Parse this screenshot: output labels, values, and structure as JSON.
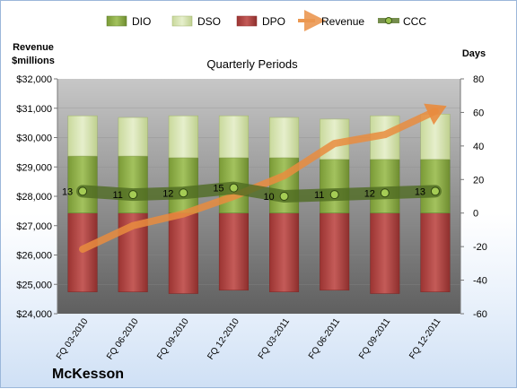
{
  "chart_data": {
    "type": "bar",
    "title": "Quarterly Periods",
    "company": "McKesson",
    "left_axis_label": [
      "Revenue",
      "$millions"
    ],
    "right_axis_label": "Days",
    "categories": [
      "FQ 03-2010",
      "FQ 06-2010",
      "FQ 09-2010",
      "FQ 12-2010",
      "FQ 03-2011",
      "FQ 06-2011",
      "FQ 09-2011",
      "FQ 12-2011"
    ],
    "left_axis": {
      "min": 24000,
      "max": 32000,
      "step": 1000,
      "tick_labels": [
        "$24,000",
        "$25,000",
        "$26,000",
        "$27,000",
        "$28,000",
        "$29,000",
        "$30,000",
        "$31,000",
        "$32,000"
      ]
    },
    "right_axis": {
      "min": -60,
      "max": 80,
      "step": 20,
      "tick_labels": [
        "-60",
        "-40",
        "-20",
        "0",
        "20",
        "40",
        "60",
        "80"
      ]
    },
    "series": [
      {
        "name": "DIO",
        "axis": "days",
        "color": "#92b34e",
        "values": [
          34,
          34,
          33,
          33,
          33,
          32,
          32,
          32
        ]
      },
      {
        "name": "DSO",
        "axis": "days",
        "color": "#d6e4b2",
        "values": [
          24,
          23,
          25,
          25,
          24,
          24,
          26,
          27
        ]
      },
      {
        "name": "DPO",
        "axis": "days",
        "color": "#b94a48",
        "values": [
          -47,
          -47,
          -48,
          -46,
          -47,
          -46,
          -48,
          -47
        ]
      },
      {
        "name": "Revenue",
        "axis": "revenue",
        "color": "#e98c3e",
        "values": [
          26200,
          27000,
          27400,
          28000,
          28700,
          29800,
          30100,
          30900
        ]
      },
      {
        "name": "CCC",
        "axis": "days",
        "color": "#5d7a2e",
        "values": [
          13,
          11,
          12,
          15,
          10,
          11,
          12,
          13
        ]
      }
    ],
    "ccc_labels": [
      "13",
      "11",
      "12",
      "15",
      "10",
      "11",
      "12",
      "13"
    ],
    "grid": true,
    "legend_position": "top"
  }
}
